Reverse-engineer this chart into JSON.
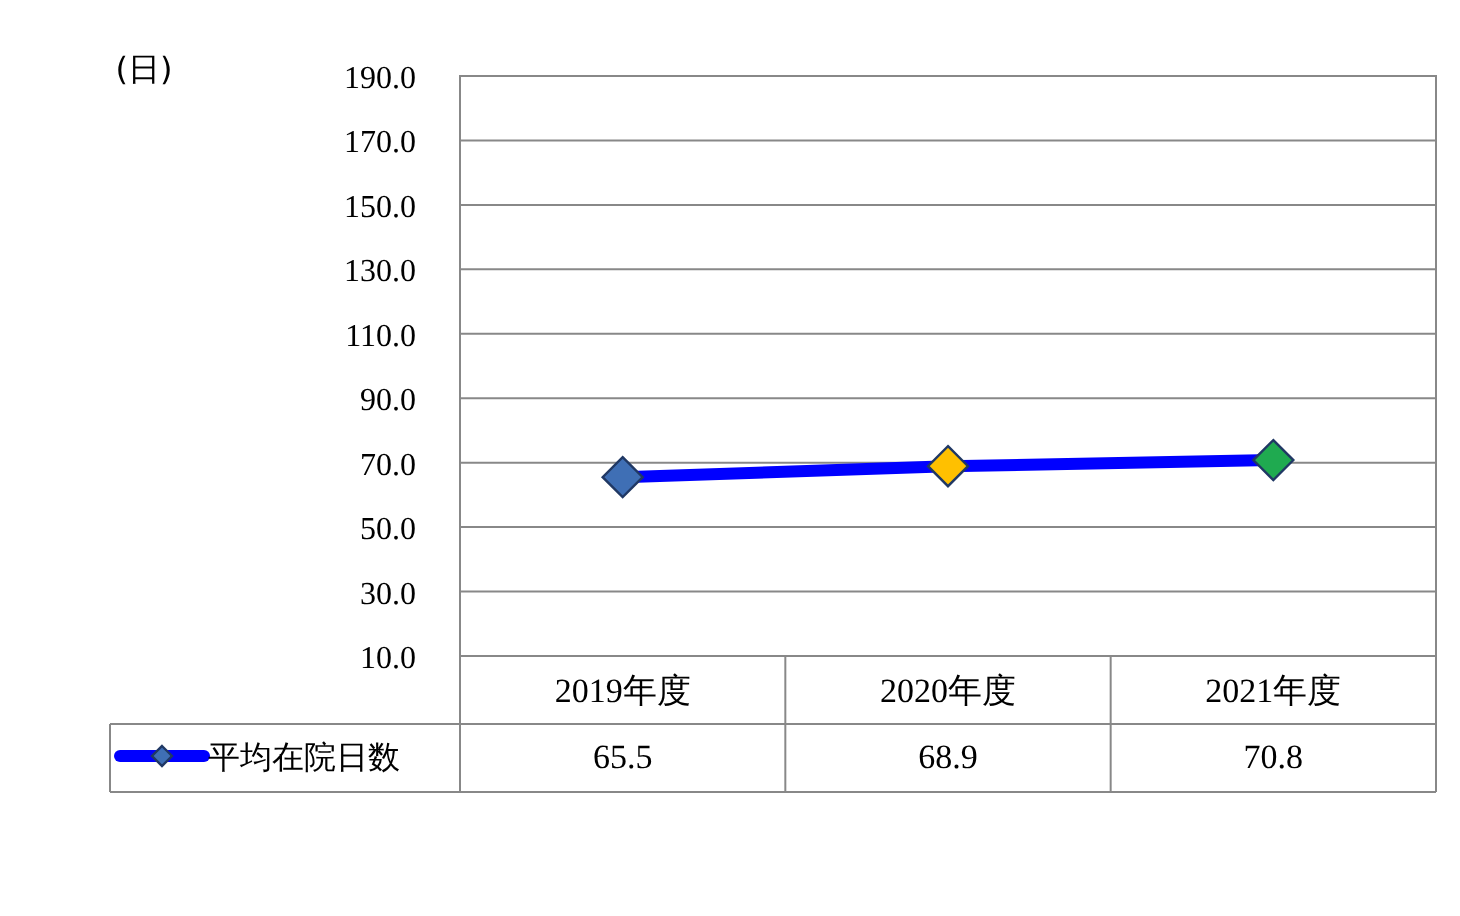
{
  "chart_data": {
    "type": "line",
    "annotations": [
      "(日)"
    ],
    "categories": [
      "2019年度",
      "2020年度",
      "2021年度"
    ],
    "series": [
      {
        "name": "平均在院日数",
        "color": "#0000ff",
        "colors": [
          "#3f6fb5",
          "#ffc000",
          "#1faa50"
        ],
        "values": [
          65.5,
          68.9,
          70.8
        ]
      }
    ],
    "ylim": [
      10,
      190
    ],
    "yticks": [
      {
        "value": 10,
        "label": "10.0"
      },
      {
        "value": 30,
        "label": "30.0"
      },
      {
        "value": 50,
        "label": "50.0"
      },
      {
        "value": 70,
        "label": "70.0"
      },
      {
        "value": 90,
        "label": "90.0"
      },
      {
        "value": 110,
        "label": "110.0"
      },
      {
        "value": 130,
        "label": "130.0"
      },
      {
        "value": 150,
        "label": "150.0"
      },
      {
        "value": 170,
        "label": "170.0"
      },
      {
        "value": 190,
        "label": "190.0"
      }
    ],
    "grid": "y",
    "marker": "diamond",
    "line_style": "solid",
    "data_labels": true
  }
}
